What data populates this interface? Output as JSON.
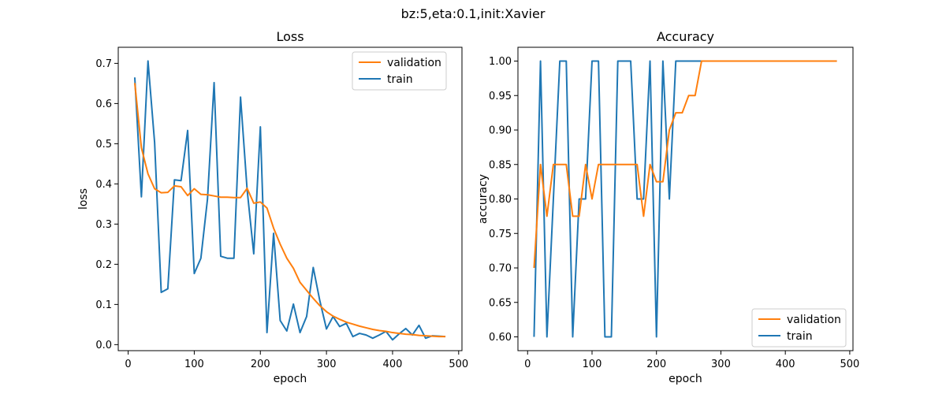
{
  "figure": {
    "suptitle": "bz:5,eta:0.1,init:Xavier"
  },
  "colors": {
    "validation": "#ff7f0e",
    "train": "#1f77b4"
  },
  "chart_data": [
    {
      "type": "line",
      "title": "Loss",
      "xlabel": "epoch",
      "ylabel": "loss",
      "xlim": [
        -15,
        505
      ],
      "ylim": [
        -0.015,
        0.74
      ],
      "xticks": [
        0,
        100,
        200,
        300,
        400,
        500
      ],
      "yticks": [
        0.0,
        0.1,
        0.2,
        0.3,
        0.4,
        0.5,
        0.6,
        0.7
      ],
      "yticklabels": [
        "0.0",
        "0.1",
        "0.2",
        "0.3",
        "0.4",
        "0.5",
        "0.6",
        "0.7"
      ],
      "legend": {
        "placement": "upper right",
        "order": [
          "validation",
          "train"
        ]
      },
      "x": [
        10,
        20,
        30,
        40,
        50,
        60,
        70,
        80,
        90,
        100,
        110,
        120,
        130,
        140,
        150,
        160,
        170,
        180,
        190,
        200,
        210,
        220,
        230,
        240,
        250,
        260,
        270,
        280,
        290,
        300,
        310,
        320,
        330,
        340,
        350,
        360,
        370,
        380,
        390,
        400,
        410,
        420,
        430,
        440,
        450,
        460,
        470,
        480
      ],
      "series": [
        {
          "name": "train",
          "color": "#1f77b4",
          "values": [
            0.665,
            0.368,
            0.706,
            0.503,
            0.13,
            0.139,
            0.41,
            0.408,
            0.533,
            0.177,
            0.215,
            0.362,
            0.652,
            0.22,
            0.215,
            0.215,
            0.616,
            0.385,
            0.226,
            0.542,
            0.03,
            0.277,
            0.06,
            0.034,
            0.101,
            0.03,
            0.07,
            0.192,
            0.109,
            0.039,
            0.07,
            0.045,
            0.053,
            0.02,
            0.028,
            0.024,
            0.016,
            0.024,
            0.033,
            0.012,
            0.027,
            0.04,
            0.024,
            0.048,
            0.016,
            0.022,
            0.021,
            0.02
          ]
        },
        {
          "name": "validation",
          "color": "#ff7f0e",
          "values": [
            0.651,
            0.49,
            0.425,
            0.388,
            0.378,
            0.379,
            0.395,
            0.393,
            0.371,
            0.388,
            0.374,
            0.373,
            0.37,
            0.367,
            0.367,
            0.366,
            0.366,
            0.389,
            0.352,
            0.355,
            0.34,
            0.29,
            0.25,
            0.215,
            0.19,
            0.155,
            0.135,
            0.115,
            0.097,
            0.082,
            0.071,
            0.063,
            0.056,
            0.051,
            0.046,
            0.042,
            0.038,
            0.035,
            0.033,
            0.03,
            0.028,
            0.026,
            0.025,
            0.023,
            0.022,
            0.021,
            0.02,
            0.02
          ]
        }
      ]
    },
    {
      "type": "line",
      "title": "Accuracy",
      "xlabel": "epoch",
      "ylabel": "accuracy",
      "xlim": [
        -15,
        505
      ],
      "ylim": [
        0.58,
        1.02
      ],
      "xticks": [
        0,
        100,
        200,
        300,
        400,
        500
      ],
      "yticks": [
        0.6,
        0.65,
        0.7,
        0.75,
        0.8,
        0.85,
        0.9,
        0.95,
        1.0
      ],
      "yticklabels": [
        "0.60",
        "0.65",
        "0.70",
        "0.75",
        "0.80",
        "0.85",
        "0.90",
        "0.95",
        "1.00"
      ],
      "legend": {
        "placement": "lower right",
        "order": [
          "validation",
          "train"
        ]
      },
      "x": [
        10,
        20,
        30,
        40,
        50,
        60,
        70,
        80,
        90,
        100,
        110,
        120,
        130,
        140,
        150,
        160,
        170,
        180,
        190,
        200,
        210,
        220,
        230,
        240,
        250,
        260,
        270,
        280,
        290,
        300,
        310,
        320,
        330,
        340,
        350,
        360,
        370,
        380,
        390,
        400,
        410,
        420,
        430,
        440,
        450,
        460,
        470,
        480
      ],
      "series": [
        {
          "name": "train",
          "color": "#1f77b4",
          "values": [
            0.6,
            1.0,
            0.6,
            0.8,
            1.0,
            1.0,
            0.6,
            0.8,
            0.8,
            1.0,
            1.0,
            0.6,
            0.6,
            1.0,
            1.0,
            1.0,
            0.8,
            0.8,
            1.0,
            0.6,
            1.0,
            0.8,
            1.0,
            1.0,
            1.0,
            1.0,
            1.0,
            1.0,
            1.0,
            1.0,
            1.0,
            1.0,
            1.0,
            1.0,
            1.0,
            1.0,
            1.0,
            1.0,
            1.0,
            1.0,
            1.0,
            1.0,
            1.0,
            1.0,
            1.0,
            1.0,
            1.0,
            1.0
          ]
        },
        {
          "name": "validation",
          "color": "#ff7f0e",
          "values": [
            0.7,
            0.85,
            0.775,
            0.85,
            0.85,
            0.85,
            0.775,
            0.775,
            0.85,
            0.8,
            0.85,
            0.85,
            0.85,
            0.85,
            0.85,
            0.85,
            0.85,
            0.775,
            0.85,
            0.825,
            0.825,
            0.9,
            0.925,
            0.925,
            0.95,
            0.95,
            1.0,
            1.0,
            1.0,
            1.0,
            1.0,
            1.0,
            1.0,
            1.0,
            1.0,
            1.0,
            1.0,
            1.0,
            1.0,
            1.0,
            1.0,
            1.0,
            1.0,
            1.0,
            1.0,
            1.0,
            1.0,
            1.0
          ]
        }
      ]
    }
  ]
}
